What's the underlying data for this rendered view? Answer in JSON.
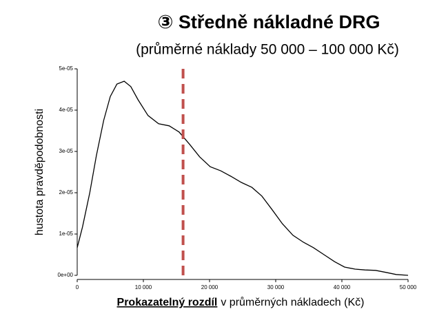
{
  "chart_data": {
    "type": "line",
    "title": "③ Středně nákladné DRG",
    "subtitle": "(průměrné náklady 50 000 – 100 000 Kč)",
    "xlabel": [
      "Prokazatelný rozdíl",
      "v průměrných nákladech (Kč)"
    ],
    "ylabel": "hustota pravděpodobnosti",
    "x": [
      0,
      800,
      1900,
      2900,
      4000,
      5000,
      6000,
      7100,
      8100,
      9200,
      10700,
      12300,
      13900,
      15400,
      17000,
      18500,
      20100,
      21700,
      23200,
      24800,
      26400,
      27900,
      29500,
      31000,
      32600,
      34200,
      35700,
      37300,
      38900,
      40400,
      42000,
      43500,
      45100,
      46700,
      48200,
      50000
    ],
    "values": [
      6.7e-06,
      1.17e-05,
      2e-05,
      2.9e-05,
      3.75e-05,
      4.33e-05,
      4.63e-05,
      4.7e-05,
      4.57e-05,
      4.25e-05,
      3.87e-05,
      3.67e-05,
      3.62e-05,
      3.47e-05,
      3.17e-05,
      2.87e-05,
      2.63e-05,
      2.53e-05,
      2.4e-05,
      2.25e-05,
      2.13e-05,
      1.92e-05,
      1.58e-05,
      1.25e-05,
      9.7e-06,
      8e-06,
      6.7e-06,
      5e-06,
      3.3e-06,
      2e-06,
      1.5e-06,
      1.3e-06,
      1.2e-06,
      7e-07,
      2e-07,
      0
    ],
    "color": "#000000",
    "reference_line": {
      "value": 16000,
      "color": "#c0504d"
    },
    "xlim": [
      0,
      50000
    ],
    "xticks": [
      0,
      {
        "value": 10000,
        "label": "10 000"
      },
      {
        "value": 20000,
        "label": "20 000"
      },
      {
        "value": 30000,
        "label": "30 000"
      },
      {
        "value": 40000,
        "label": "40 000"
      },
      {
        "value": 50000,
        "label": "50 000"
      }
    ],
    "ylim": [
      0,
      5e-05
    ],
    "yticks": [
      {
        "value": 0,
        "label": "0e+00"
      },
      {
        "value": 1e-05,
        "label": "1e-05"
      },
      {
        "value": 2e-05,
        "label": "2e-05"
      },
      {
        "value": 3e-05,
        "label": "3e-05"
      },
      {
        "value": 4e-05,
        "label": "4e-05"
      },
      {
        "value": 5e-05,
        "label": "5e-05"
      }
    ]
  }
}
